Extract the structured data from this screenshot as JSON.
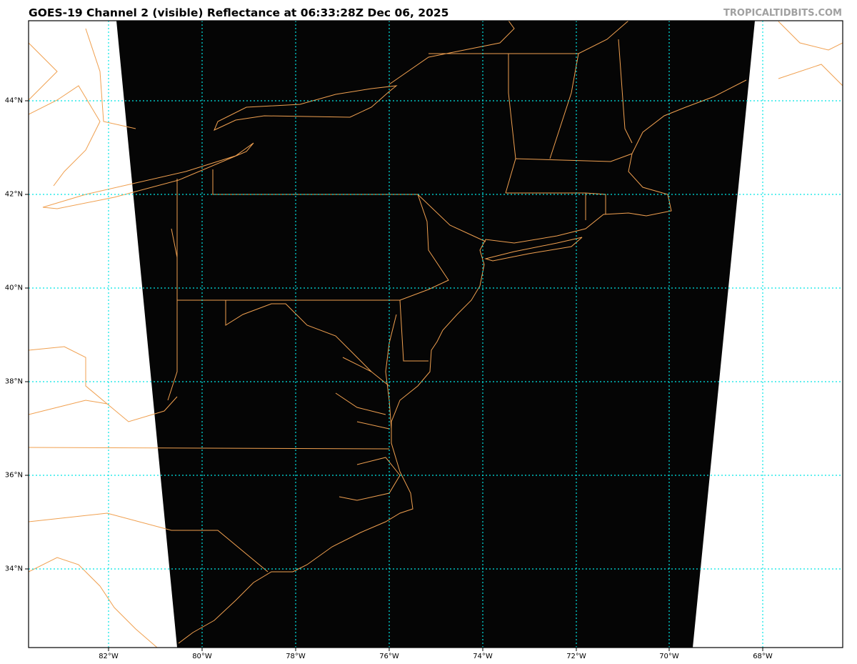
{
  "header": {
    "title": "GOES-19 Channel 2 (visible) Reflectance at 06:33:28Z Dec 06, 2025",
    "credit": "TROPICALTIDBITS.COM"
  },
  "map": {
    "product": "GOES-19 Channel 2 (visible) Reflectance",
    "colors": {
      "background": "#ffffff",
      "imagery": "#050505",
      "borders": "#f0a050",
      "gridlines": "#00e5e5"
    },
    "lat_labels": [
      "44°N",
      "42°N",
      "40°N",
      "38°N",
      "36°N",
      "34°N"
    ],
    "lon_labels": [
      "82°W",
      "80°W",
      "78°W",
      "76°W",
      "74°W",
      "72°W",
      "70°W",
      "68°W"
    ]
  }
}
